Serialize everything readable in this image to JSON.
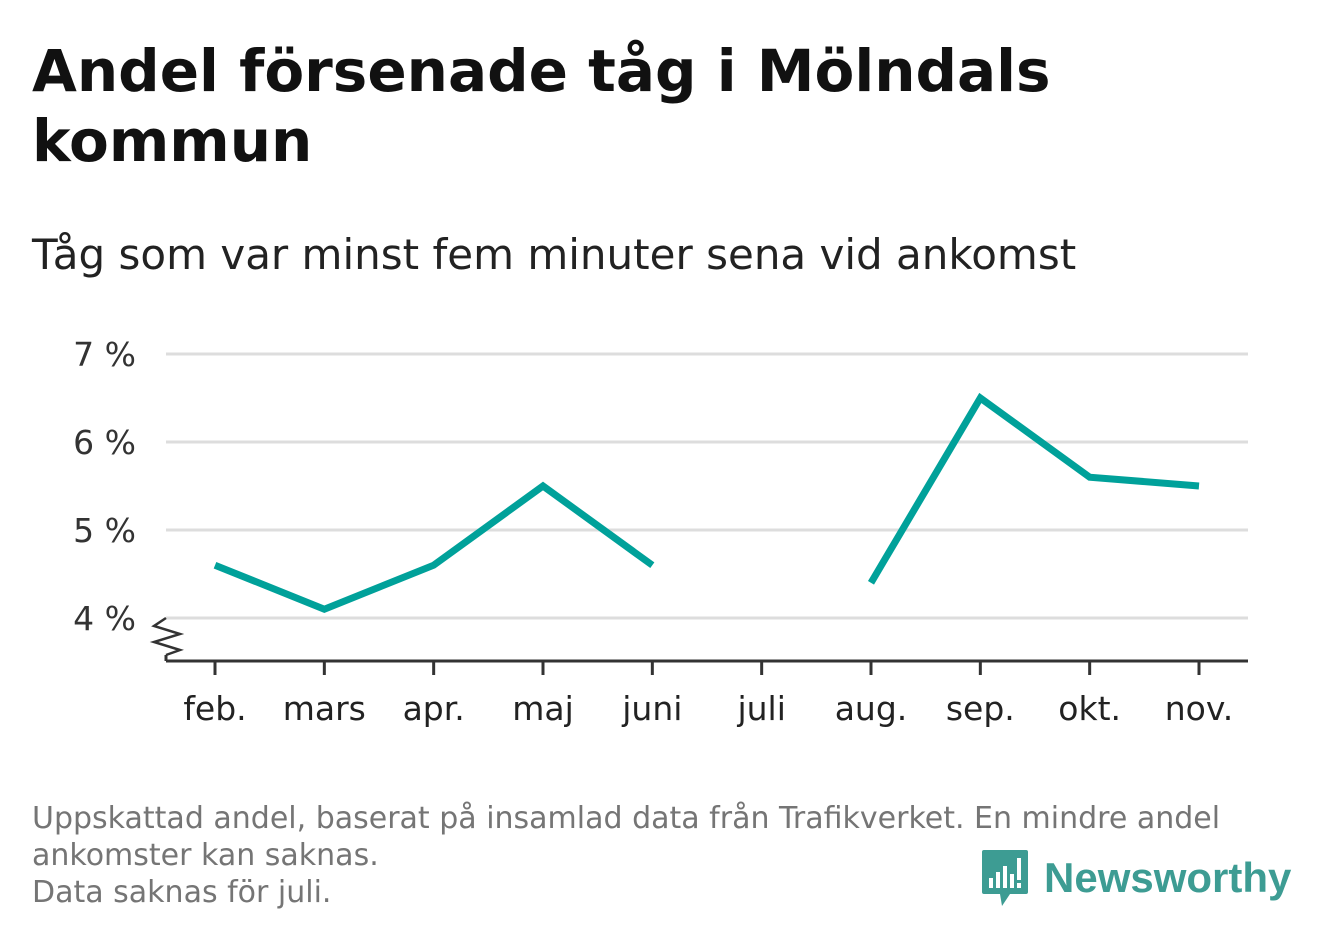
{
  "title": "Andel försenade tåg i Mölndals kommun",
  "subtitle": "Tåg som var minst fem minuter sena vid ankomst",
  "footer": {
    "note_line1": "Uppskattad andel, baserat på insamlad data från Trafikverket. En mindre andel",
    "note_line2": "ankomster kan saknas.",
    "note_line3": "Data saknas för juli."
  },
  "brand": {
    "name": "Newsworthy",
    "icon": "newsworthy-logo-icon",
    "color": "#3d9c93"
  },
  "colors": {
    "line": "#00a19a",
    "grid": "#dddddd",
    "axis": "#333333"
  },
  "chart_data": {
    "type": "line",
    "title": "Andel försenade tåg i Mölndals kommun",
    "subtitle": "Tåg som var minst fem minuter sena vid ankomst",
    "categories": [
      "feb.",
      "mars",
      "apr.",
      "maj",
      "juni",
      "juli",
      "aug.",
      "sep.",
      "okt.",
      "nov."
    ],
    "series": [
      {
        "values": [
          4.6,
          4.1,
          4.6,
          5.5,
          4.6,
          null,
          4.4,
          6.5,
          5.6,
          5.5
        ]
      }
    ],
    "ylim": [
      3.5,
      7
    ],
    "yticks": [
      4,
      5,
      6,
      7
    ],
    "ytick_labels": [
      "4 %",
      "5 %",
      "6 %",
      "7 %"
    ],
    "grid": true,
    "axis_break": true
  }
}
